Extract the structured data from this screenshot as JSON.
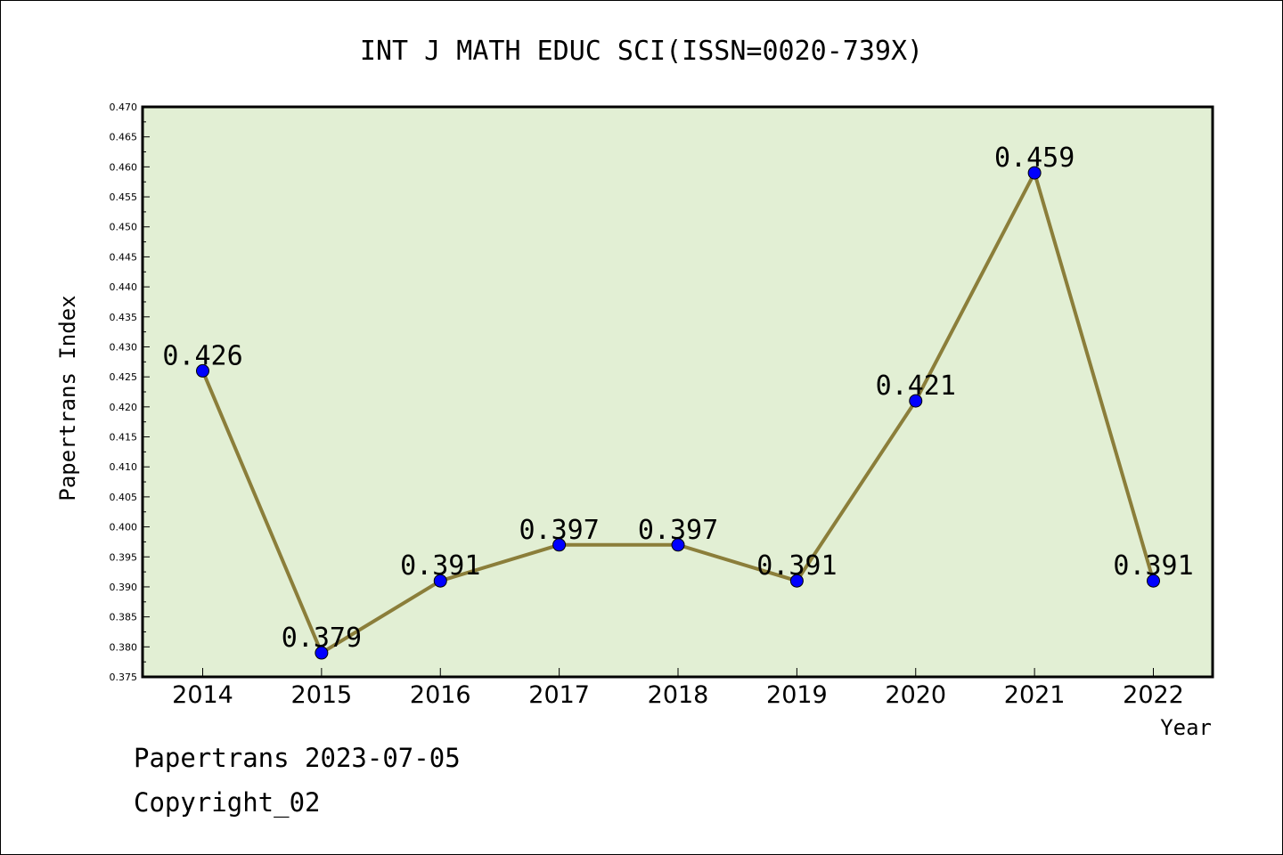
{
  "chart_data": {
    "type": "line",
    "title": "INT J MATH EDUC SCI(ISSN=0020-739X)",
    "xlabel": "Year",
    "ylabel": "Papertrans Index",
    "categories": [
      "2014",
      "2015",
      "2016",
      "2017",
      "2018",
      "2019",
      "2020",
      "2021",
      "2022"
    ],
    "values": [
      0.426,
      0.379,
      0.391,
      0.397,
      0.397,
      0.391,
      0.421,
      0.459,
      0.391
    ],
    "data_labels": [
      "0.426",
      "0.379",
      "0.391",
      "0.397",
      "0.397",
      "0.391",
      "0.421",
      "0.459",
      "0.391"
    ],
    "ylim": [
      0.375,
      0.47
    ],
    "yticks": [
      "0.375",
      "0.380",
      "0.385",
      "0.390",
      "0.395",
      "0.400",
      "0.405",
      "0.410",
      "0.415",
      "0.420",
      "0.425",
      "0.430",
      "0.435",
      "0.440",
      "0.445",
      "0.450",
      "0.455",
      "0.460",
      "0.465",
      "0.470"
    ],
    "grid": false,
    "colors": {
      "plot_background": "#e2efd4",
      "line": "#8b7e3a",
      "marker": "#0000ff"
    }
  },
  "footer": {
    "line1": "Papertrans 2023-07-05",
    "line2": "Copyright_02"
  }
}
